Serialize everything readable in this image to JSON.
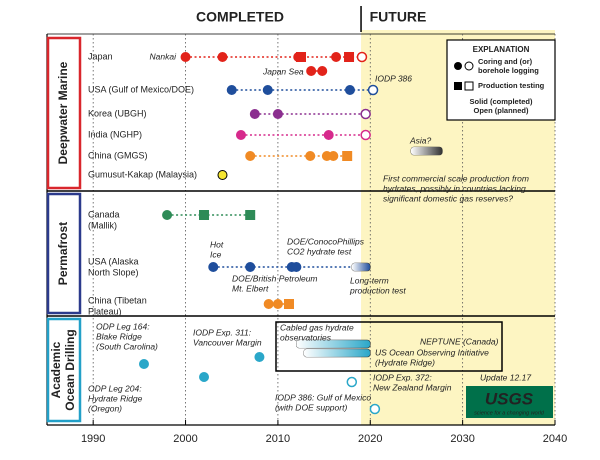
{
  "chart_data": {
    "type": "timeline",
    "periods": [
      {
        "label": "COMPLETED"
      },
      {
        "label": "FUTURE",
        "start": 2019
      }
    ],
    "xlim": [
      1985,
      2040
    ],
    "xticks": [
      1990,
      2000,
      2010,
      2020,
      2030,
      2040
    ],
    "grid": true,
    "groups": [
      {
        "name": [
          "Deepwater Marine"
        ],
        "color": "#d9262c",
        "rows": [
          {
            "label": [
              "Japan"
            ],
            "color": "#e2231a",
            "events": [
              {
                "x": 2000,
                "shape": "circle"
              },
              {
                "x": 2004,
                "shape": "circle"
              },
              {
                "x": 2012.2,
                "shape": "circle"
              },
              {
                "x": 2012.5,
                "shape": "square"
              },
              {
                "x": 2016.3,
                "shape": "circle"
              },
              {
                "x": 2017.7,
                "shape": "square"
              },
              {
                "x": 2019.1,
                "shape": "circle",
                "open": true
              }
            ]
          },
          {
            "label": null,
            "color": "#e2231a",
            "events": [
              {
                "x": 2013.6,
                "shape": "circle"
              },
              {
                "x": 2014.8,
                "shape": "circle"
              }
            ]
          },
          {
            "label": [
              "USA (Gulf of Mexico/DOE)"
            ],
            "color": "#1f4e9c",
            "events": [
              {
                "x": 2005,
                "shape": "circle"
              },
              {
                "x": 2008.9,
                "shape": "circle"
              },
              {
                "x": 2017.8,
                "shape": "circle"
              },
              {
                "x": 2020.3,
                "shape": "circle",
                "open": true
              }
            ]
          },
          {
            "label": [
              "Korea (UBGH)"
            ],
            "color": "#8b2f8f",
            "events": [
              {
                "x": 2007.5,
                "shape": "circle"
              },
              {
                "x": 2010,
                "shape": "circle"
              },
              {
                "x": 2019.5,
                "shape": "circle",
                "open": true
              }
            ]
          },
          {
            "label": [
              "India (NGHP)"
            ],
            "color": "#d62a8c",
            "events": [
              {
                "x": 2006,
                "shape": "circle"
              },
              {
                "x": 2015.5,
                "shape": "circle"
              },
              {
                "x": 2019.5,
                "shape": "circle",
                "open": true
              }
            ]
          },
          {
            "label": [
              "China (GMGS)"
            ],
            "color": "#f08a24",
            "events": [
              {
                "x": 2007,
                "shape": "circle"
              },
              {
                "x": 2013.5,
                "shape": "circle"
              },
              {
                "x": 2015.3,
                "shape": "circle"
              },
              {
                "x": 2016,
                "shape": "circle"
              },
              {
                "x": 2017.5,
                "shape": "square"
              }
            ]
          },
          {
            "label": [
              "Gumusut-Kakap (Malaysia)"
            ],
            "color": "#f5e632",
            "stroke": "#000",
            "events": [
              {
                "x": 2004,
                "shape": "circle"
              }
            ]
          },
          {
            "label": null,
            "color": "#333333",
            "events": [
              {
                "start": 2024.4,
                "end": 2027.8,
                "shape": "bar"
              }
            ]
          }
        ]
      },
      {
        "name": [
          "Permafrost"
        ],
        "color": "#2b3a8c",
        "rows": [
          {
            "label": [
              "Canada",
              "(Mallik)"
            ],
            "color": "#2e8b57",
            "events": [
              {
                "x": 1998,
                "shape": "circle"
              },
              {
                "x": 2002,
                "shape": "square"
              },
              {
                "x": 2007,
                "shape": "square"
              }
            ]
          },
          {
            "label": [
              "USA (Alaska",
              "North Slope)"
            ],
            "color": "#1f4e9c",
            "events": [
              {
                "x": 2003,
                "shape": "circle"
              },
              {
                "x": 2007,
                "shape": "circle"
              },
              {
                "x": 2011.5,
                "shape": "circle"
              },
              {
                "x": 2012,
                "shape": "circle"
              },
              {
                "start": 2018,
                "end": 2020,
                "shape": "bar"
              }
            ]
          },
          {
            "label": [
              "China (Tibetan",
              "Plateau)"
            ],
            "color": "#f08a24",
            "events": [
              {
                "x": 2009,
                "shape": "circle"
              },
              {
                "x": 2010,
                "shape": "circle"
              },
              {
                "x": 2011.2,
                "shape": "square"
              }
            ]
          }
        ]
      },
      {
        "name": [
          "Academic",
          "Ocean Drilling"
        ],
        "color": "#22a0c8",
        "rows": [
          {
            "label": null,
            "color": "#2aa7c9",
            "events": [
              {
                "x": 1995.5,
                "shape": "circle"
              }
            ]
          },
          {
            "label": null,
            "color": "#2aa7c9",
            "events": [
              {
                "x": 2008,
                "shape": "circle"
              }
            ]
          },
          {
            "label": null,
            "color": "#2aa7c9",
            "events": [
              {
                "x": 2002,
                "shape": "circle"
              }
            ]
          },
          {
            "label": null,
            "color": "#2aa7c9",
            "events": [
              {
                "start": 2012,
                "end": 2020,
                "shape": "bar"
              }
            ]
          },
          {
            "label": null,
            "color": "#2aa7c9",
            "events": [
              {
                "start": 2012.8,
                "end": 2020,
                "shape": "bar"
              }
            ]
          },
          {
            "label": null,
            "color": "#2aa7c9",
            "events": [
              {
                "x": 2018,
                "shape": "circle",
                "open": true
              }
            ]
          },
          {
            "label": null,
            "color": "#2aa7c9",
            "events": [
              {
                "x": 2020.5,
                "shape": "circle",
                "open": true
              }
            ]
          }
        ]
      }
    ],
    "annotations": [
      [
        "Nankai"
      ],
      [
        "Japan Sea"
      ],
      [
        "IODP 386"
      ],
      [
        "Asia?"
      ],
      [
        "First commercial scale production from",
        "hydrates, possibly in countries lacking",
        "significant domestic gas reserves?"
      ],
      [
        "Hot",
        "Ice"
      ],
      [
        "DOE/ConocoPhillips",
        "CO2 hydrate test"
      ],
      [
        "DOE/British Petroleum",
        "Mt. Elbert"
      ],
      [
        "Long-term",
        "production test"
      ],
      [
        "ODP Leg 164:",
        "Blake Ridge",
        "(South Carolina)"
      ],
      [
        "IODP Exp. 311:",
        "Vancouver Margin"
      ],
      [
        "ODP Leg 204:",
        "Hydrate Ridge",
        "(Oregon)"
      ],
      [
        "Cabled gas hydrate",
        "observatories"
      ],
      [
        "NEPTUNE (Canada)"
      ],
      [
        "US Ocean Observing Initiative",
        "(Hydrate Ridge)"
      ],
      [
        "IODP Exp. 372:",
        "New Zealand Margin"
      ],
      [
        "IODP 386: Gulf of Mexico",
        "(with DOE support)"
      ],
      [
        "Update 12.17"
      ]
    ],
    "legend": {
      "title": "EXPLANATION",
      "items": [
        [
          "Coring and (or)",
          "borehole logging"
        ],
        [
          "Production testing"
        ],
        [
          "Solid (completed)",
          "Open (planned)"
        ]
      ]
    },
    "logo": {
      "name": "USGS",
      "tagline": "science for a changing world"
    }
  }
}
